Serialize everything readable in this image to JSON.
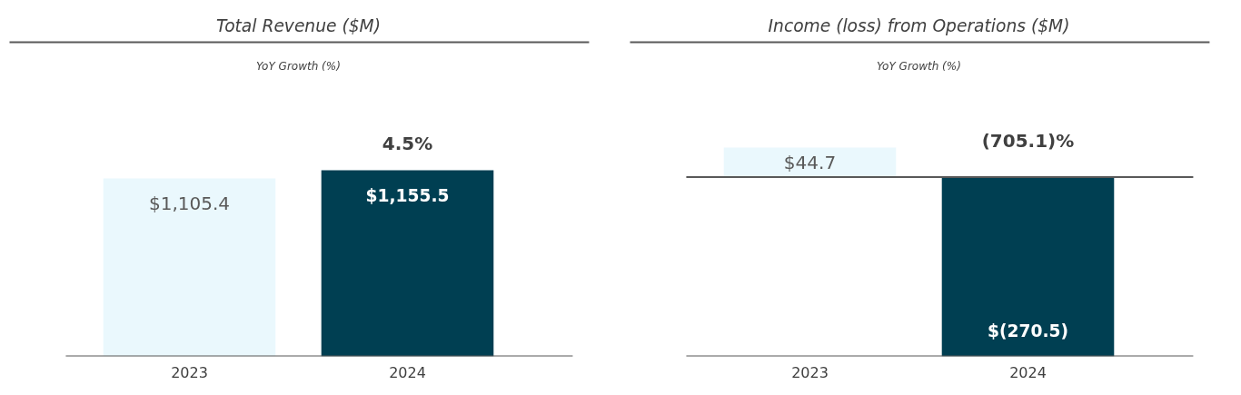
{
  "chart_data": [
    {
      "type": "bar",
      "title": "Total Revenue ($M)",
      "subtitle": "YoY Growth (%)",
      "categories": [
        "2023",
        "2024"
      ],
      "values": [
        1105.4,
        1155.5
      ],
      "colors": [
        "#eaf8fd",
        "#003f52"
      ],
      "value_labels": [
        "$1,105.4",
        "$1,155.5"
      ],
      "annotations": [
        {
          "text": "4.5%",
          "x": "2024",
          "y": 1155.5
        }
      ]
    },
    {
      "type": "bar",
      "title": "Income (loss) from Operations ($M)",
      "subtitle": "YoY Growth (%)",
      "categories": [
        "2023",
        "2024"
      ],
      "values": [
        44.7,
        -270.5
      ],
      "colors": [
        "#eaf8fd",
        "#003f52"
      ],
      "value_labels": [
        "$44.7",
        "$(270.5)"
      ],
      "annotations": [
        {
          "text": "(705.1)%",
          "x": "2024",
          "y": 0
        }
      ]
    }
  ]
}
